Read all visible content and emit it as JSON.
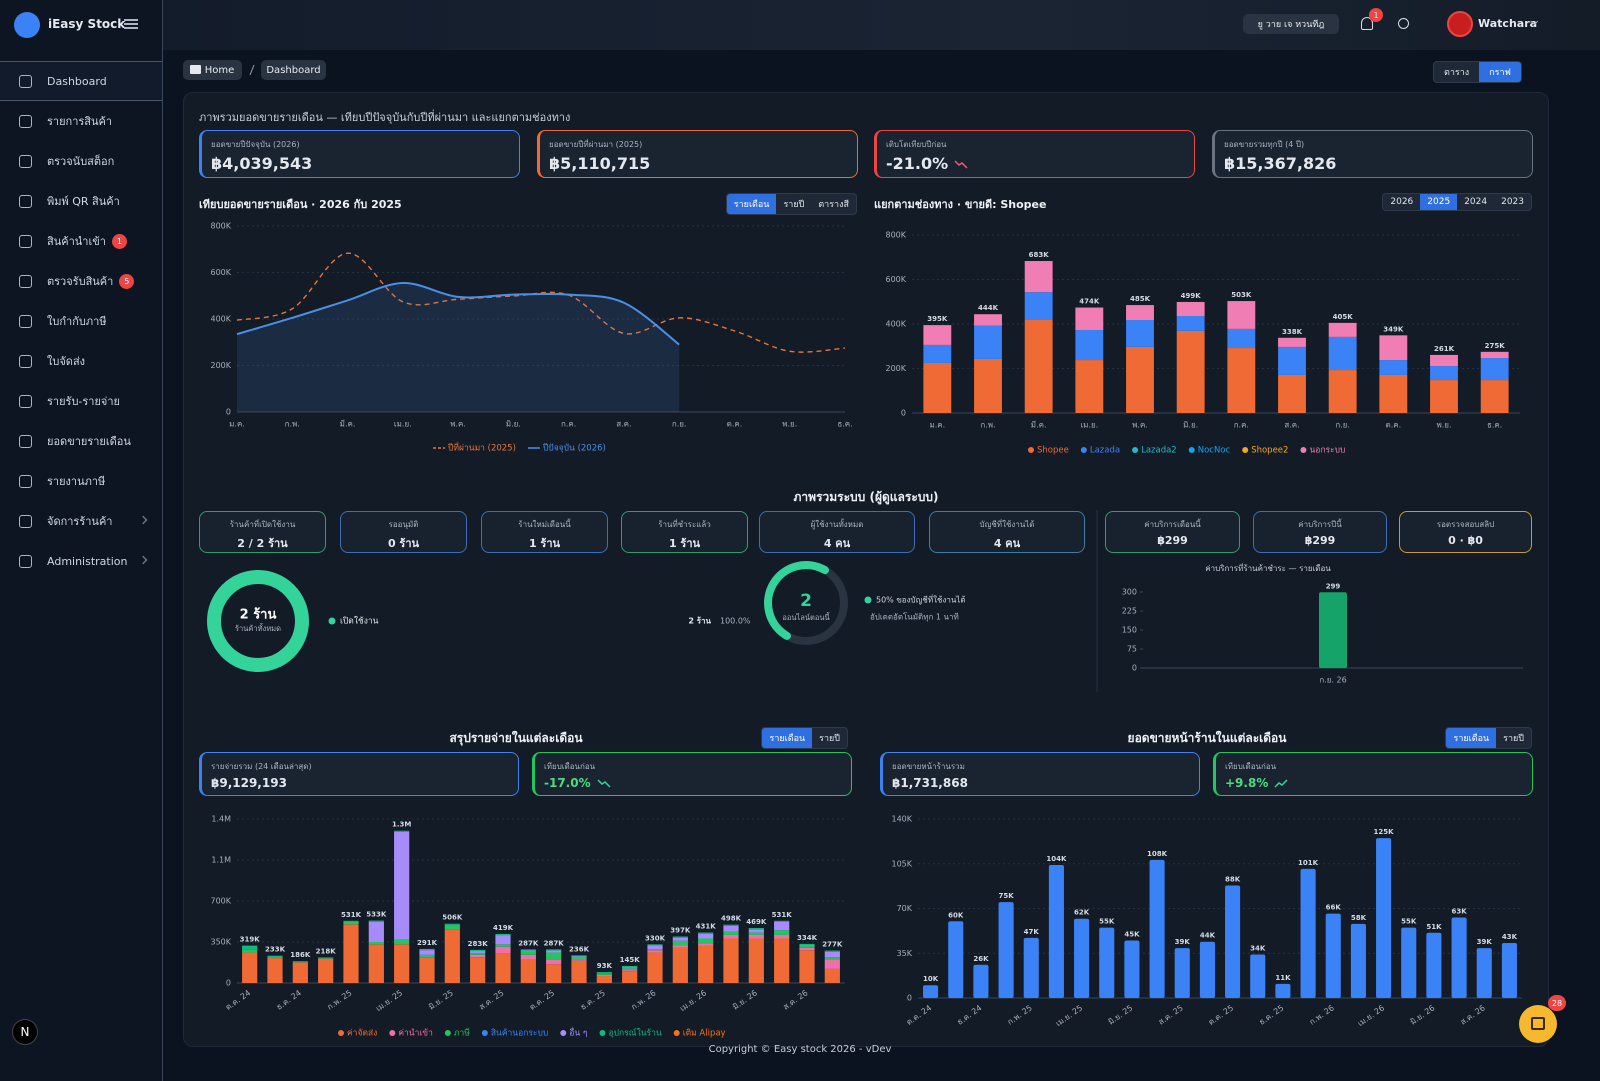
{
  "sidebar": {
    "brand": "iEasy Stock",
    "menu": [
      {
        "label": "Dashboard",
        "active": true
      },
      {
        "label": "รายการสินค้า"
      },
      {
        "label": "ตรวจนับสต็อก"
      },
      {
        "label": "พิมพ์ QR สินค้า"
      },
      {
        "label": "สินค้านำเข้า",
        "badge": 1
      },
      {
        "label": "ตรวจรับสินค้า",
        "badge": 5
      },
      {
        "label": "ใบกำกับภาษี"
      },
      {
        "label": "ใบจัดส่ง"
      },
      {
        "label": "รายรับ-รายจ่าย"
      },
      {
        "label": "ยอดขายรายเดือน"
      },
      {
        "label": "รายงานภาษี"
      },
      {
        "label": "จัดการร้านค้า",
        "submenu": true
      },
      {
        "label": "Administration",
        "submenu": true
      }
    ]
  },
  "topbar": {
    "shop": "ยู วาย เจ หวนทีฎ",
    "notifications": 1,
    "user": "Watchara"
  },
  "breadcrumb": [
    "Home",
    "Dashboard"
  ],
  "view_toggle": {
    "options": [
      "ตาราง",
      "กราฟ"
    ],
    "active": 1
  },
  "overview": {
    "title": "ภาพรวมยอดขายรายเดือน — เทียบปีปัจจุบันกับปีที่ผ่านมา และแยกตามช่องทาง",
    "kpis": [
      {
        "label": "ยอดขายปีปัจจุบัน (2026)",
        "value": "฿4,039,543"
      },
      {
        "label": "ยอดขายปีที่ผ่านมา (2025)",
        "value": "฿5,110,715"
      },
      {
        "label": "เติบโตเทียบปีก่อน",
        "value": "-21.0%",
        "trend": "down"
      },
      {
        "label": "ยอดขายรวมทุกปี (4 ปี)",
        "value": "฿15,367,826"
      }
    ]
  },
  "sales_compare": {
    "type": "line",
    "title": "เทียบยอดขายรายเดือน · 2026 กับ 2025",
    "tabs": [
      "รายเดือน",
      "รายปี",
      "ตารางสี"
    ],
    "active_tab": 0,
    "categories": [
      "ม.ค.",
      "ก.พ.",
      "มี.ค.",
      "เม.ย.",
      "พ.ค.",
      "มิ.ย.",
      "ก.ค.",
      "ส.ค.",
      "ก.ย.",
      "ต.ค.",
      "พ.ย.",
      "ธ.ค."
    ],
    "series": [
      {
        "name": "ปีที่ผ่านมา (2025)",
        "color": "#e8743b",
        "dashed": true,
        "values": [
          395000,
          444000,
          683000,
          474000,
          485000,
          499000,
          503000,
          338000,
          405000,
          349000,
          261000,
          275000
        ]
      },
      {
        "name": "ปีปัจจุบัน (2026)",
        "color": "#4a8fe7",
        "area": true,
        "values": [
          335000,
          405000,
          480000,
          555000,
          495000,
          505000,
          505000,
          470000,
          290000,
          null,
          null,
          null
        ]
      }
    ],
    "ylim": [
      0,
      800000
    ],
    "yticks": [
      0,
      {
        "value": 200000,
        "label": "200K"
      },
      {
        "value": 400000,
        "label": "400K"
      },
      {
        "value": 600000,
        "label": "600K"
      },
      {
        "value": 800000,
        "label": "800K"
      }
    ],
    "grid": true
  },
  "channels": {
    "type": "stacked_bar",
    "title": "แยกตามช่องทาง · ขายดี: Shopee",
    "tabs": [
      2026,
      2025,
      2024,
      2023
    ],
    "active_tab": 1,
    "categories": [
      "ม.ค.",
      "ก.พ.",
      "มี.ค.",
      "เม.ย.",
      "พ.ค.",
      "มิ.ย.",
      "ก.ค.",
      "ส.ค.",
      "ก.ย.",
      "ต.ค.",
      "พ.ย.",
      "ธ.ค."
    ],
    "series": [
      {
        "name": "Shopee",
        "color": "#ef6a34",
        "values": [
          225000,
          243000,
          418000,
          238000,
          297000,
          369000,
          292000,
          171000,
          193000,
          171000,
          148000,
          148000
        ]
      },
      {
        "name": "Lazada",
        "color": "#3b82f6",
        "values": [
          81000,
          150000,
          125000,
          135000,
          121000,
          67000,
          86000,
          126000,
          149000,
          67000,
          63000,
          99000
        ]
      },
      {
        "name": "Lazada2",
        "color": "#22b8cf",
        "values": [
          0,
          0,
          0,
          0,
          0,
          0,
          0,
          0,
          0,
          0,
          0,
          0
        ]
      },
      {
        "name": "NocNoc",
        "color": "#0ea5e9",
        "values": [
          0,
          0,
          0,
          0,
          0,
          0,
          0,
          0,
          0,
          0,
          0,
          0
        ]
      },
      {
        "name": "Shopee2",
        "color": "#f5a524",
        "values": [
          0,
          0,
          0,
          0,
          0,
          0,
          0,
          0,
          0,
          0,
          0,
          0
        ]
      },
      {
        "name": "นอกระบบ",
        "color": "#f07eb4",
        "values": [
          89000,
          51000,
          140000,
          101000,
          67000,
          63000,
          125000,
          41000,
          63000,
          111000,
          50000,
          28000
        ]
      }
    ],
    "totals": [
      395000,
      444000,
      683000,
      474000,
      485000,
      499000,
      503000,
      338000,
      405000,
      349000,
      261000,
      275000
    ],
    "total_labels": [
      "395K",
      "444K",
      "683K",
      "474K",
      "485K",
      "499K",
      "503K",
      "338K",
      "405K",
      "349K",
      "261K",
      "275K"
    ],
    "ylim": [
      0,
      800000
    ],
    "yticks": [
      0,
      {
        "value": 200000,
        "label": "200K"
      },
      {
        "value": 400000,
        "label": "400K"
      },
      {
        "value": 600000,
        "label": "600K"
      },
      {
        "value": 800000,
        "label": "800K"
      }
    ],
    "grid": true
  },
  "system": {
    "title": "ภาพรวมระบบ (ผู้ดูแลระบบ)",
    "cards": [
      {
        "label": "ร้านค้าที่เปิดใช้งาน",
        "value": "2 / 2 ร้าน"
      },
      {
        "label": "รออนุมัติ",
        "value": "0 ร้าน"
      },
      {
        "label": "ร้านใหม่เดือนนี้",
        "value": "1 ร้าน"
      },
      {
        "label": "ร้านที่ชำระแล้ว",
        "value": "1 ร้าน"
      },
      {
        "label": "ผู้ใช้งานทั้งหมด",
        "value": "4 คน"
      },
      {
        "label": "บัญชีที่ใช้งานได้",
        "value": "4 คน"
      },
      {
        "label": "ค่าบริการเดือนนี้",
        "value": "฿299"
      },
      {
        "label": "ค่าบริการปีนี้",
        "value": "฿299"
      },
      {
        "label": "รอตรวจสอบสลิป",
        "value": "0 · ฿0"
      }
    ],
    "stores": {
      "type": "pie",
      "center_value": "2 ร้าน",
      "center_label": "ร้านค้าทั้งหมด",
      "categories": [
        "เปิดใช้งาน"
      ],
      "values": [
        2
      ],
      "color": "#34d399",
      "legend_count": "2 ร้าน",
      "legend_share": "100.0%"
    },
    "online": {
      "type": "gauge",
      "value": 2,
      "label": "ออนไลน์ตอนนี้",
      "share": 50,
      "share_text": "50% ของบัญชีที่ใช้งานได้",
      "note": "อัปเดตอัตโนมัติทุก 1 นาที",
      "color": "#34d399"
    },
    "fees": {
      "type": "bar",
      "title": "ค่าบริการที่ร้านค้าชำระ — รายเดือน",
      "categories": [
        "ก.ย. 26"
      ],
      "values": [
        299
      ],
      "color": "#16a36a",
      "ylim": [
        0,
        300
      ],
      "yticks": [
        0,
        75,
        150,
        225,
        300
      ]
    }
  },
  "expenses": {
    "title": "สรุปรายจ่ายในแต่ละเดือน",
    "tabs": [
      "รายเดือน",
      "รายปี"
    ],
    "active_tab": 0,
    "kpis": [
      {
        "label": "รายจ่ายรวม (24 เดือนล่าสุด)",
        "value": "฿9,129,193"
      },
      {
        "label": "เทียบเดือนก่อน",
        "value": "-17.0%",
        "trend": "down"
      }
    ],
    "chart": {
      "type": "stacked_bar",
      "categories": [
        "ต.ค. 24",
        null,
        "ธ.ค. 24",
        null,
        "ก.พ. 25",
        null,
        "เม.ย. 25",
        null,
        "มิ.ย. 25",
        null,
        "ส.ค. 25",
        null,
        "ต.ค. 25",
        null,
        "ธ.ค. 25",
        null,
        "ก.พ. 26",
        null,
        "เม.ย. 26",
        null,
        "มิ.ย. 26",
        null,
        "ส.ค. 26",
        null
      ],
      "series": [
        {
          "name": "ค่าจัดส่ง",
          "color": "#ef6a34",
          "values": [
            260000,
            213000,
            176000,
            208000,
            501000,
            330000,
            330000,
            220000,
            460000,
            220000,
            250000,
            200000,
            160000,
            190000,
            60000,
            100000,
            260000,
            300000,
            320000,
            380000,
            380000,
            380000,
            280000,
            120000
          ]
        },
        {
          "name": "ค่านำเข้า",
          "color": "#f06ea9",
          "values": [
            0,
            0,
            0,
            0,
            0,
            0,
            0,
            0,
            0,
            20000,
            60000,
            40000,
            40000,
            10000,
            10000,
            10000,
            20000,
            20000,
            20000,
            30000,
            30000,
            30000,
            20000,
            80000
          ]
        },
        {
          "name": "ภาษี",
          "color": "#22c55e",
          "values": [
            25000,
            0,
            0,
            0,
            20000,
            20000,
            40000,
            20000,
            36000,
            13000,
            20000,
            27000,
            60000,
            16000,
            13000,
            15000,
            10000,
            40000,
            40000,
            30000,
            20000,
            40000,
            20000,
            20000
          ]
        },
        {
          "name": "สินค้านอกระบบ",
          "color": "#3b82f6",
          "values": [
            0,
            0,
            0,
            0,
            0,
            0,
            0,
            0,
            0,
            0,
            0,
            0,
            0,
            0,
            0,
            0,
            0,
            0,
            0,
            0,
            0,
            0,
            0,
            0
          ]
        },
        {
          "name": "อื่น ๆ",
          "color": "#a78bfa",
          "values": [
            0,
            0,
            0,
            0,
            0,
            173000,
            920000,
            41000,
            0,
            20000,
            79000,
            10000,
            17000,
            10000,
            0,
            10000,
            30000,
            27000,
            41000,
            48000,
            29000,
            71000,
            4000,
            47000
          ]
        },
        {
          "name": "อุปกรณ์ในร้าน",
          "color": "#10b981",
          "values": [
            34000,
            20000,
            10000,
            10000,
            10000,
            10000,
            10000,
            10000,
            10000,
            10000,
            10000,
            10000,
            10000,
            10000,
            10000,
            10000,
            10000,
            10000,
            10000,
            10000,
            10000,
            10000,
            10000,
            10000
          ]
        },
        {
          "name": "เติม Alipay",
          "color": "#f97316",
          "values": [
            0,
            0,
            0,
            0,
            0,
            0,
            0,
            0,
            0,
            0,
            0,
            0,
            0,
            0,
            0,
            0,
            0,
            0,
            0,
            0,
            0,
            0,
            0,
            0
          ]
        }
      ],
      "totals": [
        319000,
        233000,
        186000,
        218000,
        531000,
        533000,
        1300000,
        291000,
        506000,
        283000,
        419000,
        287000,
        287000,
        236000,
        93000,
        145000,
        330000,
        397000,
        431000,
        498000,
        469000,
        531000,
        334000,
        277000
      ],
      "total_labels": [
        "319K",
        "233K",
        "186K",
        "218K",
        "531K",
        "533K",
        "1.3M",
        "291K",
        "506K",
        "283K",
        "419K",
        "287K",
        "287K",
        "236K",
        "93K",
        "145K",
        "330K",
        "397K",
        "431K",
        "498K",
        "469K",
        "531K",
        "334K",
        "277K"
      ],
      "ylim": [
        0,
        1400000
      ],
      "yticks": [
        0,
        {
          "value": 350000,
          "label": "350K"
        },
        {
          "value": 700000,
          "label": "700K"
        },
        {
          "value": 1050000,
          "label": "1.1M"
        },
        {
          "value": 1400000,
          "label": "1.4M"
        }
      ],
      "grid": true
    }
  },
  "storefront": {
    "title": "ยอดขายหน้าร้านในแต่ละเดือน",
    "tabs": [
      "รายเดือน",
      "รายปี"
    ],
    "active_tab": 0,
    "kpis": [
      {
        "label": "ยอดขายหน้าร้านรวม",
        "value": "฿1,731,868"
      },
      {
        "label": "เทียบเดือนก่อน",
        "value": "+9.8%",
        "trend": "up"
      }
    ],
    "chart": {
      "type": "bar",
      "color": "#3b82f6",
      "categories": [
        "ต.ค. 24",
        null,
        "ธ.ค. 24",
        null,
        "ก.พ. 25",
        null,
        "เม.ย. 25",
        null,
        "มิ.ย. 25",
        null,
        "ส.ค. 25",
        null,
        "ต.ค. 25",
        null,
        "ธ.ค. 25",
        null,
        "ก.พ. 26",
        null,
        "เม.ย. 26",
        null,
        "มิ.ย. 26",
        null,
        "ส.ค. 26",
        null
      ],
      "values": [
        10000,
        60000,
        26000,
        75000,
        47000,
        104000,
        62000,
        55000,
        45000,
        108000,
        39000,
        44000,
        88000,
        34000,
        11000,
        101000,
        66000,
        58000,
        125000,
        55000,
        51000,
        63000,
        39000,
        43000
      ],
      "value_labels": [
        "10K",
        "60K",
        "26K",
        "75K",
        "47K",
        "104K",
        "62K",
        "55K",
        "45K",
        "108K",
        "39K",
        "44K",
        "88K",
        "34K",
        "11K",
        "101K",
        "66K",
        "58K",
        "125K",
        "55K",
        "51K",
        "63K",
        "39K",
        "43K"
      ],
      "ylim": [
        0,
        140000
      ],
      "yticks": [
        0,
        {
          "value": 35000,
          "label": "35K"
        },
        {
          "value": 70000,
          "label": "70K"
        },
        {
          "value": 105000,
          "label": "105K"
        },
        {
          "value": 140000,
          "label": "140K"
        }
      ],
      "grid": true
    }
  },
  "footer": "Copyright © Easy stock 2026 - vDev",
  "dev_badge": "N",
  "fab_badge": 28
}
